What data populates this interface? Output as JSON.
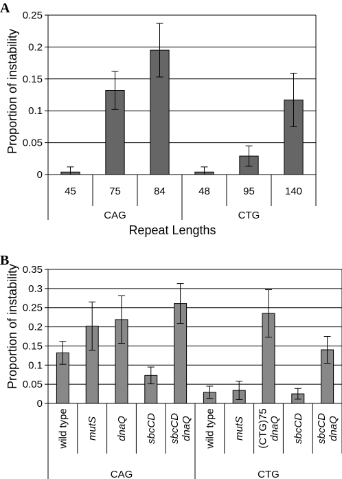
{
  "chart_data": [
    {
      "type": "bar",
      "panel_label": "A",
      "ylabel": "Proportion of instability",
      "xlabel": "Repeat Lengths",
      "ylim": [
        0,
        0.25
      ],
      "yticks": [
        "0",
        "0.05",
        "0.1",
        "0.15",
        "0.2",
        "0.25"
      ],
      "ytick_values": [
        0,
        0.05,
        0.1,
        0.15,
        0.2,
        0.25
      ],
      "grid": true,
      "bar_color": "#666666",
      "categories": [
        "45",
        "75",
        "84",
        "48",
        "95",
        "140"
      ],
      "groups": [
        {
          "label": "CAG",
          "count": 3
        },
        {
          "label": "CTG",
          "count": 3
        }
      ],
      "values": [
        0.004,
        0.132,
        0.195,
        0.004,
        0.029,
        0.117
      ],
      "error": [
        0.008,
        0.03,
        0.042,
        0.008,
        0.016,
        0.042
      ]
    },
    {
      "type": "bar",
      "panel_label": "B",
      "ylabel": "Proportion of instability",
      "ylim": [
        0,
        0.35
      ],
      "yticks": [
        "0",
        "0.05",
        "0.1",
        "0.15",
        "0.2",
        "0.25",
        "0.3",
        "0.35"
      ],
      "ytick_values": [
        0,
        0.05,
        0.1,
        0.15,
        0.2,
        0.25,
        0.3,
        0.35
      ],
      "grid": true,
      "bar_color": "#888888",
      "categories": [
        {
          "lines": [
            "wild type"
          ],
          "italic": false
        },
        {
          "lines": [
            "mutS"
          ],
          "italic": true
        },
        {
          "lines": [
            "dnaQ"
          ],
          "italic": true
        },
        {
          "lines": [
            "sbcCD"
          ],
          "italic": true
        },
        {
          "lines": [
            "sbcCD",
            "dnaQ"
          ],
          "italic": true
        },
        {
          "lines": [
            "wild type"
          ],
          "italic": false
        },
        {
          "lines": [
            "mutS"
          ],
          "italic": true
        },
        {
          "lines": [
            "(CTG)75",
            "dnaQ"
          ],
          "italic": false,
          "italic_lines": [
            false,
            true
          ]
        },
        {
          "lines": [
            "sbcCD"
          ],
          "italic": true
        },
        {
          "lines": [
            "sbcCD",
            "dnaQ"
          ],
          "italic": true
        }
      ],
      "groups": [
        {
          "label": "CAG",
          "count": 5
        },
        {
          "label": "CTG",
          "count": 5
        }
      ],
      "values": [
        0.132,
        0.202,
        0.219,
        0.073,
        0.261,
        0.029,
        0.034,
        0.235,
        0.025,
        0.14
      ],
      "error": [
        0.03,
        0.063,
        0.062,
        0.022,
        0.052,
        0.016,
        0.024,
        0.062,
        0.014,
        0.035
      ]
    }
  ]
}
